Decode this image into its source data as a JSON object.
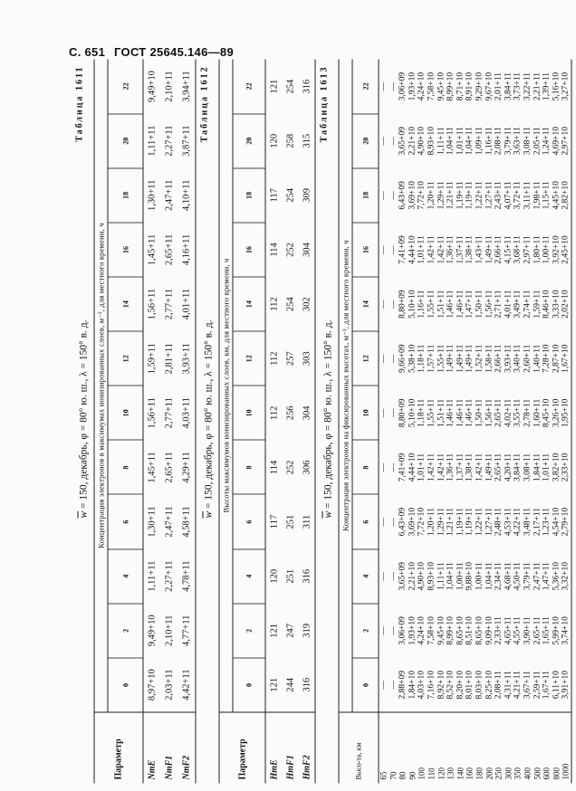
{
  "header": {
    "page": "С. 651",
    "standard": "ГОСТ 25645.146—89"
  },
  "tables": [
    {
      "label": "Таблица 1611",
      "cond_symbol": "w",
      "cond_text": " = 150, декабрь, φ = 80° ю. ш., λ = 150° в. д.",
      "param_header": "Параметр",
      "group_header": "Концентрация электронов в максимумах ионизированных слоев, м⁻³, для местного времени, ч",
      "hours": [
        "0",
        "2",
        "4",
        "6",
        "8",
        "10",
        "12",
        "14",
        "16",
        "18",
        "20",
        "22"
      ],
      "rows": [
        {
          "name": "NmE",
          "values": [
            "8,97+10",
            "9,49+10",
            "1,11+11",
            "1,30+11",
            "1,45+11",
            "1,56+11",
            "1,59+11",
            "1,56+11",
            "1,45+11",
            "1,30+11",
            "1,11+11",
            "9,49+10"
          ]
        },
        {
          "name": "NmF1",
          "values": [
            "2,03+11",
            "2,10+11",
            "2,27+11",
            "2,47+11",
            "2,65+11",
            "2,77+11",
            "2,81+11",
            "2,77+11",
            "2,65+11",
            "2,47+11",
            "2,27+11",
            "2,10+11"
          ]
        },
        {
          "name": "NmF2",
          "values": [
            "4,42+11",
            "4,77+11",
            "4,78+11",
            "4,58+11",
            "4,29+11",
            "4,03+11",
            "3,93+11",
            "4,01+11",
            "4,16+11",
            "4,10+11",
            "3,87+11",
            "3,94+11"
          ]
        }
      ]
    },
    {
      "label": "Таблица 1612",
      "cond_symbol": "w",
      "cond_text": " = 150, декабрь, φ = 80° ю. ш., λ = 150° в. д.",
      "param_header": "Параметр",
      "group_header": "Высоты максимумов ионизированных слоев, км, для местного времени, ч",
      "hours": [
        "0",
        "2",
        "4",
        "6",
        "8",
        "10",
        "12",
        "14",
        "16",
        "18",
        "20",
        "22"
      ],
      "rows": [
        {
          "name": "HmE",
          "values": [
            "121",
            "121",
            "120",
            "117",
            "114",
            "112",
            "112",
            "112",
            "114",
            "117",
            "120",
            "121"
          ]
        },
        {
          "name": "HmF1",
          "values": [
            "244",
            "247",
            "251",
            "251",
            "252",
            "256",
            "257",
            "254",
            "252",
            "254",
            "258",
            "254"
          ]
        },
        {
          "name": "HmF2",
          "values": [
            "316",
            "319",
            "316",
            "311",
            "306",
            "304",
            "303",
            "302",
            "304",
            "309",
            "315",
            "316"
          ]
        }
      ]
    },
    {
      "label": "Таблица 1613",
      "cond_symbol": "w",
      "cond_text": " = 150, декабрь, φ = 80° ю. ш., λ = 150° в. д.",
      "param_header": "Высо-та, км",
      "group_header": "Концентрация электронов на фиксированных высотах, м⁻³, для местного времени, ч",
      "hours": [
        "0",
        "2",
        "4",
        "6",
        "8",
        "10",
        "12",
        "14",
        "16",
        "18",
        "20",
        "22"
      ],
      "rows": [
        {
          "name": "65",
          "values": [
            "—",
            "—",
            "—",
            "—",
            "—",
            "—",
            "—",
            "—",
            "—",
            "—",
            "—",
            "—"
          ]
        },
        {
          "name": "70",
          "values": [
            "—",
            "—",
            "—",
            "—",
            "—",
            "—",
            "—",
            "—",
            "—",
            "—",
            "—",
            "—"
          ]
        },
        {
          "name": "80",
          "values": [
            "2,88+09",
            "3,06+09",
            "3,65+09",
            "6,43+09",
            "7,41+09",
            "8,80+09",
            "9,66+09",
            "8,80+09",
            "7,41+09",
            "6,43+09",
            "3,65+09",
            "3,06+09"
          ]
        },
        {
          "name": "90",
          "values": [
            "1,84+10",
            "1,93+10",
            "2,21+10",
            "3,69+10",
            "4,44+10",
            "5,10+10",
            "5,38+10",
            "5,10+10",
            "4,44+10",
            "3,69+10",
            "2,21+10",
            "1,93+10"
          ]
        },
        {
          "name": "100",
          "values": [
            "4,03+10",
            "4,24+10",
            "4,90+10",
            "7,72+10",
            "1,01+11",
            "1,18+11",
            "1,18+11",
            "1,16+11",
            "1,01+11",
            "7,72+10",
            "4,90+10",
            "4,24+10"
          ]
        },
        {
          "name": "110",
          "values": [
            "7,16+10",
            "7,58+10",
            "8,93+10",
            "1,20+11",
            "1,42+11",
            "1,55+11",
            "1,57+11",
            "1,55+11",
            "1,42+11",
            "1,20+11",
            "8,93+10",
            "7,58+10"
          ]
        },
        {
          "name": "120",
          "values": [
            "8,92+10",
            "9,45+10",
            "1,11+11",
            "1,29+11",
            "1,42+11",
            "1,51+11",
            "1,55+11",
            "1,51+11",
            "1,42+11",
            "1,29+11",
            "1,11+11",
            "9,45+10"
          ]
        },
        {
          "name": "130",
          "values": [
            "8,52+10",
            "8,99+10",
            "1,04+11",
            "1,21+11",
            "1,36+11",
            "1,46+11",
            "1,49+11",
            "1,46+11",
            "1,36+11",
            "1,21+11",
            "1,04+11",
            "8,99+10"
          ]
        },
        {
          "name": "140",
          "values": [
            "8,20+10",
            "8,65+10",
            "1,00+11",
            "1,19+11",
            "1,37+11",
            "1,46+11",
            "1,49+11",
            "1,46+11",
            "1,37+11",
            "1,19+11",
            "1,01+11",
            "8,71+10"
          ]
        },
        {
          "name": "160",
          "values": [
            "8,01+10",
            "8,51+10",
            "9,88+10",
            "1,19+11",
            "1,38+11",
            "1,46+11",
            "1,49+11",
            "1,47+11",
            "1,38+11",
            "1,19+11",
            "1,04+11",
            "8,91+10"
          ]
        },
        {
          "name": "180",
          "values": [
            "8,03+10",
            "8,65+10",
            "1,00+11",
            "1,22+11",
            "1,42+11",
            "1,50+11",
            "1,52+11",
            "1,50+11",
            "1,43+11",
            "1,22+11",
            "1,09+11",
            "9,29+10"
          ]
        },
        {
          "name": "200",
          "values": [
            "8,25+10",
            "9,09+10",
            "1,04+11",
            "1,27+11",
            "1,49+11",
            "1,56+11",
            "1,58+11",
            "1,56+11",
            "1,49+11",
            "1,27+11",
            "1,16+11",
            "9,67+10"
          ]
        },
        {
          "name": "250",
          "values": [
            "2,08+11",
            "2,33+11",
            "2,34+11",
            "2,48+11",
            "2,65+11",
            "2,65+11",
            "2,66+11",
            "2,71+11",
            "2,66+11",
            "2,43+11",
            "2,08+11",
            "2,01+11"
          ]
        },
        {
          "name": "300",
          "values": [
            "4,31+11",
            "4,65+11",
            "4,68+11",
            "4,53+11",
            "4,20+11",
            "4,02+11",
            "3,93+11",
            "4,01+11",
            "4,15+11",
            "4,07+11",
            "3,79+11",
            "3,84+11"
          ]
        },
        {
          "name": "350",
          "values": [
            "4,21+11",
            "4,55+11",
            "4,50+11",
            "4,22+11",
            "3,84+11",
            "3,55+11",
            "3,40+11",
            "3,49+11",
            "3,68+11",
            "3,72+11",
            "3,63+11",
            "3,73+11"
          ]
        },
        {
          "name": "400",
          "values": [
            "3,67+11",
            "3,90+11",
            "3,79+11",
            "3,48+11",
            "3,08+11",
            "2,78+11",
            "2,60+11",
            "2,74+11",
            "2,97+11",
            "3,11+11",
            "3,08+11",
            "3,22+11"
          ]
        },
        {
          "name": "500",
          "values": [
            "2,59+11",
            "2,65+11",
            "2,47+11",
            "2,17+11",
            "1,84+11",
            "1,60+11",
            "1,40+11",
            "1,59+11",
            "1,80+11",
            "1,98+11",
            "2,05+11",
            "2,21+11"
          ]
        },
        {
          "name": "600",
          "values": [
            "1,67+11",
            "1,65+11",
            "1,47+11",
            "1,23+11",
            "1,01+11",
            "8,45+10",
            "7,28+10",
            "8,46+10",
            "1,00+11",
            "1,15+11",
            "1,24+11",
            "1,39+11"
          ]
        },
        {
          "name": "800",
          "values": [
            "6,11+10",
            "5,99+10",
            "5,36+10",
            "4,54+10",
            "3,82+10",
            "3,26+10",
            "2,87+10",
            "3,33+10",
            "3,92+10",
            "4,45+10",
            "4,69+10",
            "5,16+10"
          ]
        },
        {
          "name": "1000",
          "values": [
            "3,91+10",
            "3,74+10",
            "3,32+10",
            "2,79+10",
            "2,33+10",
            "1,95+10",
            "1,67+10",
            "2,02+10",
            "2,45+10",
            "2,82+10",
            "2,97+10",
            "3,27+10"
          ]
        }
      ]
    }
  ]
}
